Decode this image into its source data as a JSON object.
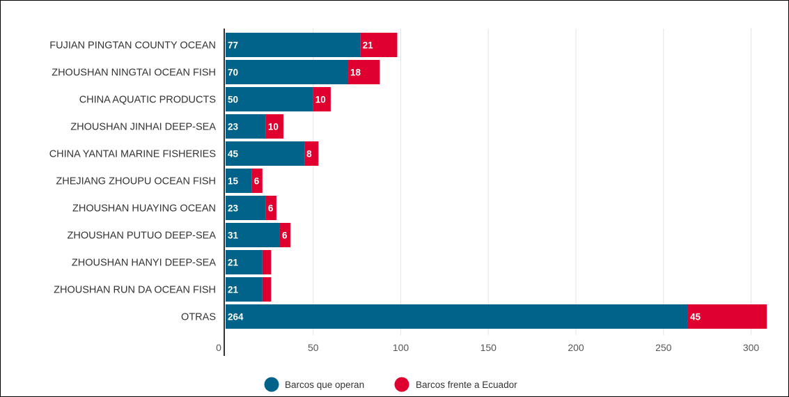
{
  "chart_data": {
    "type": "bar",
    "orientation": "horizontal",
    "stacked": true,
    "title": "",
    "xlabel": "",
    "ylabel": "",
    "xlim": [
      0,
      315
    ],
    "xticks": [
      0,
      50,
      100,
      150,
      200,
      250,
      300
    ],
    "grid": true,
    "legend_position": "bottom-center",
    "categories": [
      "FUJIAN PINGTAN COUNTY OCEAN",
      "ZHOUSHAN NINGTAI OCEAN FISH",
      "CHINA AQUATIC PRODUCTS",
      "ZHOUSHAN JINHAI DEEP-SEA",
      "CHINA YANTAI MARINE FISHERIES",
      "ZHEJIANG ZHOUPU OCEAN FISH",
      "ZHOUSHAN HUAYING OCEAN",
      "ZHOUSHAN PUTUO DEEP-SEA",
      "ZHOUSHAN HANYI DEEP-SEA",
      "ZHOUSHAN RUN DA OCEAN FISH",
      "OTRAS"
    ],
    "series": [
      {
        "name": "Barcos que operan",
        "color": "#01628a",
        "values": [
          77,
          70,
          50,
          23,
          45,
          15,
          23,
          31,
          21,
          21,
          264
        ],
        "labels": [
          "77",
          "70",
          "50",
          "23",
          "45",
          "15",
          "23",
          "31",
          "21",
          "21",
          "264"
        ]
      },
      {
        "name": "Barcos frente a Ecuador",
        "color": "#e0002f",
        "values": [
          21,
          18,
          10,
          10,
          8,
          6,
          6,
          6,
          5,
          5,
          45
        ],
        "labels": [
          "21",
          "18",
          "10",
          "10",
          "8",
          "6",
          "6",
          "6",
          "",
          "",
          "45"
        ]
      }
    ]
  }
}
